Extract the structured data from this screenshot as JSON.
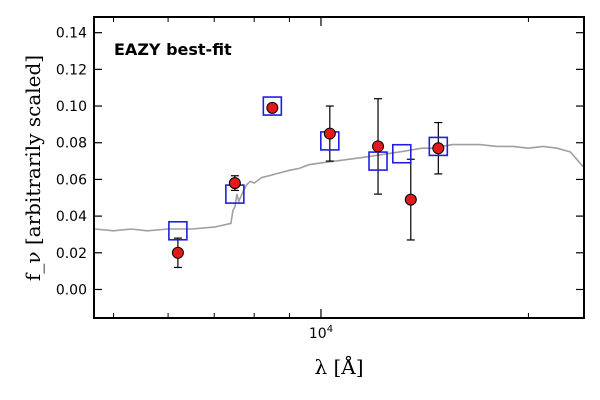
{
  "chart_data": {
    "type": "scatter",
    "annotation": "EAZY best-fit",
    "ylabel": "f_ν [arbitrarily scaled]",
    "xlabel": "λ [Å]",
    "x_scale": "log",
    "x_range": [
      4700,
      24000
    ],
    "ylim": [
      -0.015,
      0.148
    ],
    "y_ticks": [
      0.0,
      0.02,
      0.04,
      0.06,
      0.08,
      0.1,
      0.12,
      0.14
    ],
    "y_tick_labels": [
      "0.00",
      "0.02",
      "0.04",
      "0.06",
      "0.08",
      "0.10",
      "0.12",
      "0.14"
    ],
    "x_major_ticks": [
      10000
    ],
    "x_major_tick_labels": [
      "10^4"
    ],
    "x_minor_ticks": [
      5000,
      6000,
      7000,
      8000,
      9000,
      20000
    ],
    "grid": false,
    "colors": {
      "template": "#a0a0a0",
      "photometry_fill": "#e31a1c",
      "model_box": "#1f1fdf",
      "annotation": "#ff0000"
    },
    "series": [
      {
        "type": "scatter_errorbar",
        "points": [
          {
            "x": 6200,
            "y": 0.02,
            "yerr": 0.008
          },
          {
            "x": 7500,
            "y": 0.058,
            "yerr": 0.004
          },
          {
            "x": 8500,
            "y": 0.099,
            "yerr": 0.002
          },
          {
            "x": 10300,
            "y": 0.085,
            "yerr": 0.015
          },
          {
            "x": 12100,
            "y": 0.078,
            "yerr": 0.026
          },
          {
            "x": 13500,
            "y": 0.049,
            "yerr": 0.022
          },
          {
            "x": 14800,
            "y": 0.077,
            "yerr": 0.014
          }
        ]
      },
      {
        "type": "model_photometry_squares",
        "points": [
          {
            "x": 6200,
            "y": 0.032
          },
          {
            "x": 7500,
            "y": 0.052
          },
          {
            "x": 8500,
            "y": 0.1
          },
          {
            "x": 10300,
            "y": 0.081
          },
          {
            "x": 12100,
            "y": 0.07
          },
          {
            "x": 13100,
            "y": 0.074
          },
          {
            "x": 14800,
            "y": 0.078
          }
        ]
      },
      {
        "type": "line",
        "points": [
          [
            4700,
            0.033
          ],
          [
            5000,
            0.032
          ],
          [
            5300,
            0.033
          ],
          [
            5600,
            0.032
          ],
          [
            6000,
            0.033
          ],
          [
            6500,
            0.033
          ],
          [
            7000,
            0.034
          ],
          [
            7400,
            0.036
          ],
          [
            7450,
            0.043
          ],
          [
            7500,
            0.045
          ],
          [
            7550,
            0.052
          ],
          [
            7600,
            0.048
          ],
          [
            7700,
            0.053
          ],
          [
            7800,
            0.057
          ],
          [
            7900,
            0.059
          ],
          [
            8000,
            0.058
          ],
          [
            8200,
            0.061
          ],
          [
            8400,
            0.062
          ],
          [
            8600,
            0.063
          ],
          [
            8800,
            0.064
          ],
          [
            9000,
            0.065
          ],
          [
            9300,
            0.066
          ],
          [
            9600,
            0.068
          ],
          [
            10000,
            0.069
          ],
          [
            10500,
            0.07
          ],
          [
            11000,
            0.071
          ],
          [
            11500,
            0.072
          ],
          [
            12000,
            0.073
          ],
          [
            12500,
            0.074
          ],
          [
            13000,
            0.075
          ],
          [
            13500,
            0.076
          ],
          [
            14000,
            0.077
          ],
          [
            14500,
            0.077
          ],
          [
            15000,
            0.078
          ],
          [
            15500,
            0.079
          ],
          [
            16000,
            0.079
          ],
          [
            17000,
            0.079
          ],
          [
            18000,
            0.078
          ],
          [
            19000,
            0.078
          ],
          [
            20000,
            0.077
          ],
          [
            21000,
            0.078
          ],
          [
            22000,
            0.077
          ],
          [
            23000,
            0.075
          ],
          [
            23500,
            0.071
          ],
          [
            24000,
            0.067
          ]
        ]
      }
    ]
  }
}
